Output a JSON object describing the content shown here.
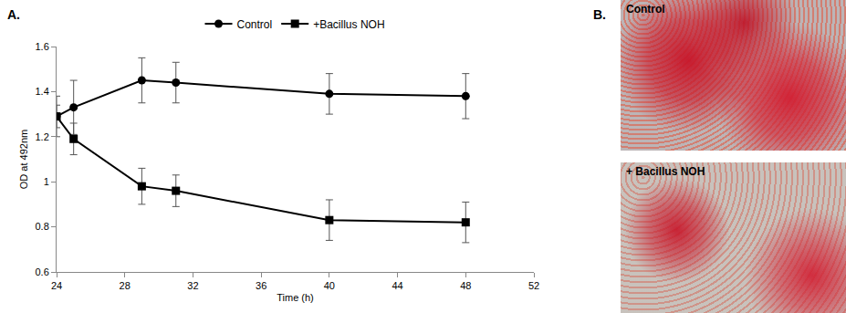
{
  "chart_data": {
    "type": "line",
    "x_label": "Time (h)",
    "y_label": "OD at 492nm",
    "x": [
      24,
      25,
      29,
      31,
      40,
      48
    ],
    "series": [
      {
        "name": "Control",
        "color": "#000000",
        "marker": "circle",
        "values": [
          1.29,
          1.33,
          1.45,
          1.44,
          1.39,
          1.38
        ],
        "errors": [
          0.09,
          0.12,
          0.1,
          0.09,
          0.09,
          0.1
        ]
      },
      {
        "name": "+Bacillus NOH",
        "color": "#000000",
        "marker": "square",
        "values": [
          1.29,
          1.19,
          0.98,
          0.96,
          0.83,
          0.82
        ],
        "errors": [
          0.05,
          0.07,
          0.08,
          0.07,
          0.09,
          0.09
        ]
      }
    ],
    "xlim": [
      24,
      52
    ],
    "xticks": [
      24,
      28,
      32,
      36,
      40,
      44,
      48,
      52
    ],
    "ylim": [
      0.6,
      1.6
    ],
    "yticks": [
      0.6,
      0.8,
      1,
      1.2,
      1.4,
      1.6
    ],
    "grid": false,
    "legend": "top"
  },
  "panel_labels": [
    "A.",
    "B."
  ],
  "images": [
    {
      "label": "Control"
    },
    {
      "label": "+ Bacillus NOH"
    }
  ]
}
